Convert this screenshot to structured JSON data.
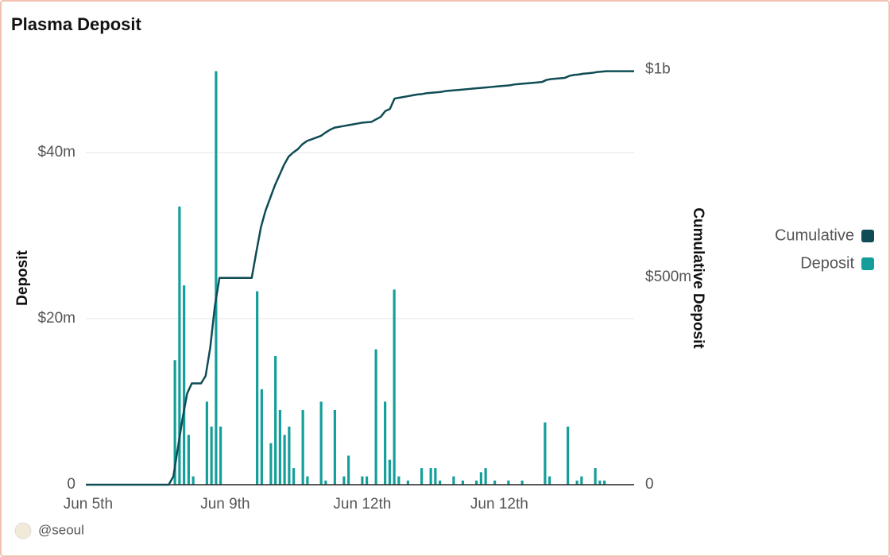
{
  "chart_data": {
    "type": "bar",
    "title": "Plasma Deposit",
    "ylabel": "Deposit",
    "y2label": "Cumulative Deposit",
    "source": "@seoul",
    "legend": "right",
    "grid": true,
    "categories": [
      "Jun 5th",
      null,
      null,
      null,
      null,
      null,
      null,
      null,
      null,
      null,
      null,
      null,
      null,
      null,
      null,
      null,
      null,
      null,
      null,
      null,
      null,
      null,
      null,
      null,
      null,
      null,
      null,
      null,
      null,
      null,
      "Jun 9th",
      null,
      null,
      null,
      null,
      null,
      null,
      null,
      null,
      null,
      null,
      null,
      null,
      null,
      null,
      null,
      null,
      null,
      null,
      null,
      null,
      null,
      null,
      null,
      null,
      null,
      null,
      null,
      null,
      null,
      "Jun 12th",
      null,
      null,
      null,
      null,
      null,
      null,
      null,
      null,
      null,
      null,
      null,
      null,
      null,
      null,
      null,
      null,
      null,
      null,
      null,
      null,
      null,
      null,
      null,
      null,
      null,
      null,
      null,
      null,
      null,
      "Jun 12th",
      null,
      null,
      null,
      null,
      null,
      null,
      null,
      null,
      null,
      null,
      null,
      null,
      null,
      null,
      null,
      null,
      null,
      null,
      null,
      null,
      null,
      null,
      null,
      null,
      null,
      null,
      null,
      null,
      null
    ],
    "ylim": [
      0,
      50000000
    ],
    "yticks": [
      0,
      {
        "value": 20000000,
        "label": "$20m"
      },
      {
        "value": 40000000,
        "label": "$40m"
      }
    ],
    "y2lim": [
      0,
      1000000000
    ],
    "y2ticks": [
      0,
      {
        "value": 500000000,
        "label": "$500m"
      },
      {
        "value": 1000000000,
        "label": "$1b"
      }
    ],
    "series": [
      {
        "name": "Cumulative",
        "color": "#0f4c55",
        "type": "line",
        "axis": "y2",
        "values": [
          0,
          0,
          0,
          0,
          0,
          0,
          0,
          0,
          0,
          0,
          0,
          0,
          0,
          0,
          0,
          0,
          0,
          0,
          0,
          20000000,
          90000000,
          160000000,
          220000000,
          244000000,
          244000000,
          244000000,
          262000000,
          330000000,
          430000000,
          498000000,
          498000000,
          498000000,
          498000000,
          498000000,
          498000000,
          498000000,
          498000000,
          560000000,
          620000000,
          660000000,
          690000000,
          720000000,
          745000000,
          770000000,
          790000000,
          800000000,
          808000000,
          820000000,
          828000000,
          832000000,
          836000000,
          840000000,
          848000000,
          855000000,
          860000000,
          862000000,
          864000000,
          866000000,
          868000000,
          870000000,
          872000000,
          873000000,
          874000000,
          880000000,
          886000000,
          900000000,
          905000000,
          930000000,
          932000000,
          934000000,
          936000000,
          938000000,
          940000000,
          941000000,
          943000000,
          944000000,
          945000000,
          946000000,
          948000000,
          949000000,
          950000000,
          951000000,
          952000000,
          953000000,
          954000000,
          955000000,
          956000000,
          957000000,
          958000000,
          959000000,
          960000000,
          961000000,
          962000000,
          964000000,
          965000000,
          966000000,
          967000000,
          968000000,
          969000000,
          970000000,
          975000000,
          977000000,
          978000000,
          979000000,
          980000000,
          985000000,
          987000000,
          988000000,
          990000000,
          991000000,
          992000000,
          994000000,
          995000000,
          996000000,
          996000000,
          996000000,
          996000000,
          996000000,
          996000000,
          996000000
        ]
      },
      {
        "name": "Deposit",
        "color": "#139e9a",
        "type": "bar",
        "values": [
          0,
          0,
          0,
          0,
          0,
          0,
          0,
          0,
          0,
          0,
          0,
          0,
          0,
          0,
          0,
          0,
          0,
          0,
          0,
          15000000,
          33500000,
          24000000,
          6000000,
          1000000,
          0,
          0,
          10000000,
          7000000,
          49800000,
          7000000,
          0,
          0,
          0,
          0,
          0,
          0,
          0,
          23300000,
          11500000,
          0,
          5000000,
          15500000,
          9000000,
          6000000,
          7000000,
          2000000,
          0,
          9000000,
          1000000,
          0,
          0,
          10000000,
          500000,
          0,
          9000000,
          0,
          1000000,
          3500000,
          0,
          0,
          1000000,
          1000000,
          0,
          16300000,
          0,
          10000000,
          3000000,
          23500000,
          1000000,
          0,
          500000,
          0,
          0,
          2000000,
          0,
          2000000,
          2000000,
          500000,
          0,
          0,
          1000000,
          0,
          500000,
          0,
          0,
          500000,
          1500000,
          2000000,
          0,
          500000,
          0,
          0,
          500000,
          0,
          0,
          500000,
          0,
          0,
          0,
          0,
          7500000,
          1000000,
          0,
          0,
          0,
          7000000,
          0,
          500000,
          1000000,
          0,
          0,
          2000000,
          500000,
          500000,
          0,
          0,
          0,
          0,
          0,
          0
        ]
      }
    ]
  }
}
